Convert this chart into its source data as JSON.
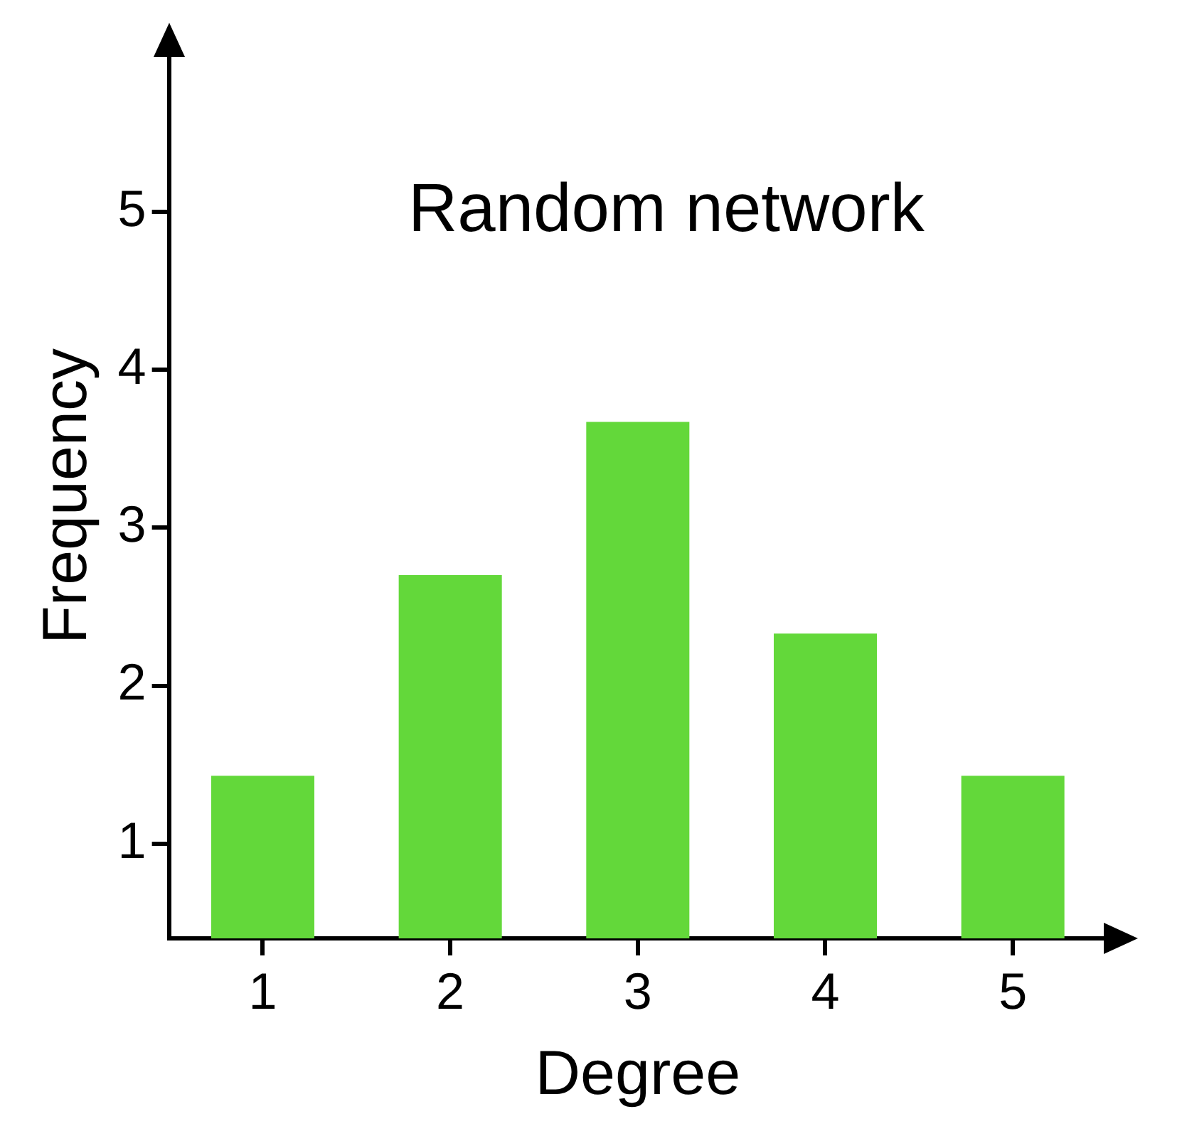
{
  "chart_data": {
    "type": "bar",
    "title": "Random network",
    "xlabel": "Degree",
    "ylabel": "Frequency",
    "categories": [
      "1",
      "2",
      "3",
      "4",
      "5"
    ],
    "values": [
      1.43,
      2.7,
      3.67,
      2.33,
      1.43
    ],
    "color": "#63d83a",
    "ylim": [
      0.4,
      6
    ],
    "yticks": [
      1,
      2,
      3,
      4,
      5
    ],
    "grid": false,
    "legend": false
  }
}
